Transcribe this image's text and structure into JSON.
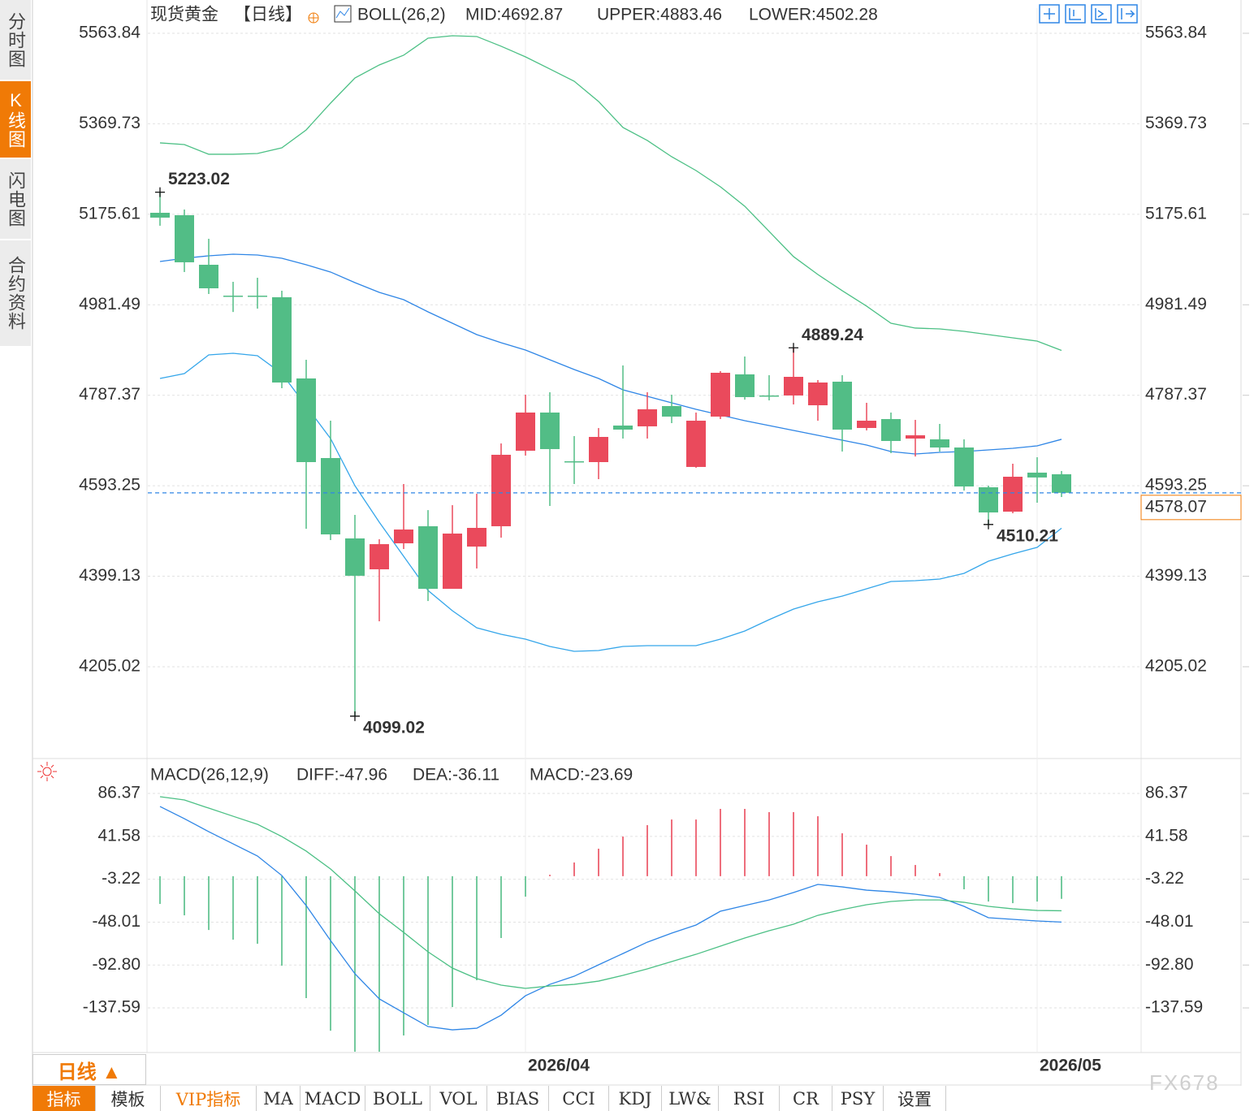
{
  "sidebar": [
    "分时图",
    "K线图",
    "闪电图",
    "合约资料"
  ],
  "period_button": "日线 ▲",
  "tabs": [
    "指标",
    "模板",
    "VIP指标",
    "MA",
    "MACD",
    "BOLL",
    "VOL",
    "BIAS",
    "CCI",
    "KDJ",
    "LW&",
    "RSI",
    "CR",
    "PSY",
    "设置"
  ],
  "watermark": "FX678",
  "chart_data": [
    {
      "type": "candlestick",
      "title": "现货黄金",
      "subtitle": "【日线】",
      "indicator": "BOLL(26,2)",
      "categories": [
        null,
        null,
        null,
        null,
        null,
        null,
        null,
        null,
        null,
        null,
        null,
        null,
        null,
        null,
        null,
        "2026/04",
        null,
        null,
        null,
        null,
        null,
        null,
        null,
        null,
        null,
        null,
        null,
        null,
        null,
        null,
        null,
        null,
        null,
        null,
        null,
        null,
        "2026/05",
        null
      ],
      "up_color": "#ea4a5c",
      "down_color": "#52bd86",
      "candles": {
        "open": [
          5178.8,
          5173.6,
          5067.3,
          5001,
          5001,
          4997.6,
          4823.4,
          4652.7,
          4480.3,
          4414,
          4469.8,
          4506.4,
          4372.2,
          4462.8,
          4506.4,
          4668.4,
          4750.3,
          4645.8,
          4644,
          4722.4,
          4720.7,
          4764.2,
          4633.6,
          4741.6,
          4832.2,
          4786.9,
          4786.9,
          4765.9,
          4816.5,
          4717.2,
          4736.3,
          4694.5,
          4692.8,
          4675.3,
          4590,
          4537.7,
          4621.4,
          4617.9
        ],
        "high": [
          5223.02,
          5185.8,
          5123,
          5030.7,
          5039.4,
          5011.6,
          4863.5,
          4732.8,
          4530.8,
          4478.5,
          4597,
          4541,
          4551.6,
          4576,
          4684,
          4788.6,
          4793.8,
          4699.8,
          4717,
          4851.3,
          4793.8,
          4788.6,
          4750.3,
          4839.1,
          4870.5,
          4830.4,
          4889.24,
          4820,
          4830.4,
          4771.2,
          4750.3,
          4734.6,
          4725.9,
          4692.8,
          4593.5,
          4640.5,
          4654.5,
          4624.9
        ],
        "low": [
          5151,
          5051.7,
          5004.6,
          4966,
          4973.2,
          4802.5,
          4501,
          4476.7,
          4099.02,
          4302.5,
          4457.6,
          4346,
          4372.2,
          4415.8,
          4482,
          4658,
          4550,
          4597,
          4607.4,
          4694.5,
          4694.5,
          4727.6,
          4631.8,
          4736.3,
          4778,
          4776.4,
          4767.7,
          4732.8,
          4666.7,
          4712,
          4663.2,
          4656,
          4666.6,
          4583,
          4510.21,
          4534.3,
          4556.9,
          4569.1
        ],
        "close": [
          5168.4,
          5072.6,
          5016.8,
          5001,
          5001,
          4814.7,
          4644,
          4488.9,
          4400.2,
          4468,
          4499.4,
          4372.2,
          4490.7,
          4502.9,
          4659.7,
          4750.3,
          4671.9,
          4645.8,
          4698,
          4713.7,
          4757.3,
          4741.6,
          4732.8,
          4835.6,
          4783.4,
          4786.9,
          4826.9,
          4814.7,
          4713.7,
          4732.8,
          4689.3,
          4701.5,
          4675.3,
          4591.7,
          4536,
          4612.6,
          4611,
          4578.07
        ]
      },
      "series": [
        {
          "name": "MID:4692.87",
          "color": "#2f86e6",
          "values": [
            5074.3,
            5081.3,
            5086.5,
            5090.0,
            5088.2,
            5081.3,
            5067.3,
            5051.7,
            5029.0,
            5008.1,
            4992.4,
            4966.3,
            4941.9,
            4917.5,
            4900.1,
            4884.4,
            4863.5,
            4842.6,
            4823.4,
            4799.1,
            4785.1,
            4771.2,
            4757.3,
            4745.0,
            4732.8,
            4722.4,
            4711.9,
            4701.5,
            4691.0,
            4680.6,
            4666.6,
            4661.4,
            4664.9,
            4666.6,
            4670.1,
            4673.6,
            4678.8,
            4692.87
          ]
        },
        {
          "name": "UPPER:4883.46",
          "color": "#4cc085",
          "values": [
            5328.7,
            5325.2,
            5304.3,
            5304.3,
            5306.0,
            5318.2,
            5356.5,
            5414.0,
            5468.0,
            5495.9,
            5516.8,
            5553.4,
            5558.6,
            5556.9,
            5536.0,
            5513.3,
            5487.2,
            5461.0,
            5417.5,
            5361.8,
            5333.9,
            5299.0,
            5269.4,
            5234.6,
            5192.8,
            5138.8,
            5084.8,
            5046.4,
            5011.6,
            4978.5,
            4941.9,
            4931.5,
            4929.7,
            4924.5,
            4917.5,
            4910.5,
            4903.6,
            4883.46
          ]
        },
        {
          "name": "LOWER:4502.28",
          "color": "#35a6ea",
          "values": [
            4823.4,
            4833.9,
            4873.9,
            4877.4,
            4872.2,
            4833.9,
            4764.2,
            4694.5,
            4593.4,
            4515.1,
            4441.9,
            4368.7,
            4325.2,
            4288.6,
            4274.6,
            4264.2,
            4248.5,
            4238.1,
            4239.8,
            4248.5,
            4250.3,
            4250.3,
            4250.3,
            4264.2,
            4281.6,
            4306.0,
            4328.6,
            4344.3,
            4356.5,
            4372.2,
            4387.9,
            4389.6,
            4393.1,
            4405.3,
            4431.4,
            4447.1,
            4461.1,
            4502.28
          ]
        }
      ],
      "ylim": [
        4015.1,
        5617.8
      ],
      "yticks": [
        5563.84,
        5369.73,
        5175.61,
        4981.49,
        4787.37,
        4593.25,
        4399.13,
        4205.02
      ],
      "grid": true
    },
    {
      "type": "bar",
      "title": "MACD(26,12,9)",
      "up_color": "#ea4a5c",
      "down_color": "#52bd86",
      "histogram": {
        "name": "MACD:-23.69",
        "color": "#58b4f2",
        "values": [
          -29.0,
          -40.9,
          -56.2,
          -66.3,
          -70.6,
          -93.5,
          -127.4,
          -161.4,
          -183.4,
          -183.4,
          -166.4,
          -155.4,
          -136.7,
          -108.7,
          -64.6,
          -21.4,
          1.5,
          14.3,
          28.7,
          41.4,
          53.3,
          59.2,
          59.2,
          70.3,
          70.3,
          66.9,
          66.9,
          62.6,
          44.8,
          32.9,
          21.0,
          11.7,
          3.2,
          -13.7,
          -26.5,
          -28.2,
          -26.5,
          -23.69
        ]
      },
      "series": [
        {
          "name": "DIFF:-47.96",
          "color": "#2f86e6",
          "values": [
            72.8,
            60.1,
            46.5,
            33.8,
            21.1,
            0.7,
            -30.7,
            -67.2,
            -101.9,
            -128.2,
            -142.7,
            -157.1,
            -160.5,
            -158.8,
            -145.2,
            -124.9,
            -113.0,
            -104.5,
            -92.6,
            -80.8,
            -68.9,
            -59.5,
            -51.0,
            -36.6,
            -30.7,
            -24.8,
            -17.1,
            -8.6,
            -11.2,
            -14.6,
            -16.3,
            -18.8,
            -22.2,
            -31.5,
            -43.4,
            -45.1,
            -46.8,
            -47.96
          ]
        },
        {
          "name": "DEA:-36.11",
          "color": "#4cc085",
          "values": [
            83.0,
            79.6,
            71.1,
            62.6,
            54.2,
            41.4,
            26.2,
            7.5,
            -15.4,
            -39.2,
            -58.7,
            -79.0,
            -96.0,
            -107.0,
            -113.8,
            -117.2,
            -114.7,
            -113.0,
            -109.6,
            -103.6,
            -96.8,
            -89.2,
            -81.6,
            -73.1,
            -64.6,
            -57.0,
            -50.2,
            -40.9,
            -34.9,
            -29.8,
            -26.4,
            -24.8,
            -24.8,
            -27.3,
            -31.5,
            -34.1,
            -35.8,
            -36.11
          ]
        }
      ],
      "ylim": [
        -184.2,
        117.8
      ],
      "yticks": [
        86.37,
        41.58,
        -3.22,
        -48.01,
        {
          "value": -92.8,
          "label": "-92.80"
        },
        -137.59
      ],
      "grid": true
    }
  ]
}
